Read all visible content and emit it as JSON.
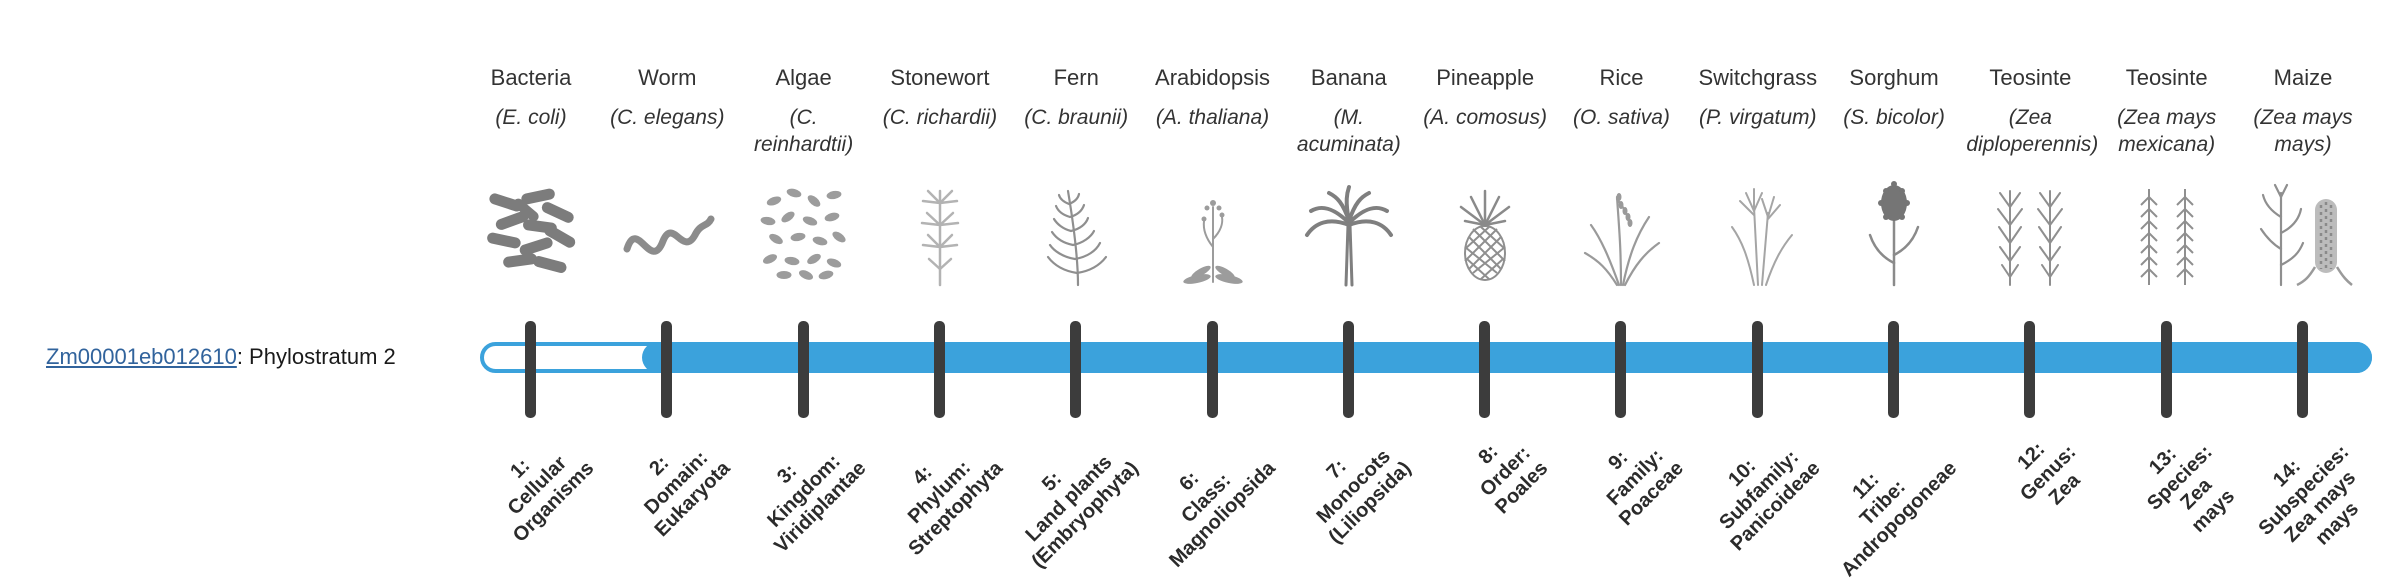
{
  "gene_track": {
    "gene_id": "Zm00001eb012610",
    "suffix": ": Phylostratum 2",
    "phylostratum": 2
  },
  "colors": {
    "track_fill": "#3ba2dc",
    "track_border": "#3ba2dc",
    "tick": "#3c3c3c",
    "link": "#31639c"
  },
  "organisms": [
    {
      "name": "Bacteria",
      "sci_name": "(E. coli)",
      "icon": "bacteria-icon",
      "tick_label": "1:\nCellular\nOrganisms"
    },
    {
      "name": "Worm",
      "sci_name": "(C. elegans)",
      "icon": "worm-icon",
      "tick_label": "2:\nDomain:\nEukaryota"
    },
    {
      "name": "Algae",
      "sci_name": "(C. reinhardtii)",
      "icon": "algae-icon",
      "tick_label": "3:\nKingdom:\nViridiplantae"
    },
    {
      "name": "Stonewort",
      "sci_name": "(C. richardii)",
      "icon": "stonewort-icon",
      "tick_label": "4:\nPhylum:\nStreptophyta"
    },
    {
      "name": "Fern",
      "sci_name": "(C. braunii)",
      "icon": "fern-icon",
      "tick_label": "5:\nLand plants\n(Embryophyta)"
    },
    {
      "name": "Arabidopsis",
      "sci_name": "(A. thaliana)",
      "icon": "arabidopsis-icon",
      "tick_label": "6:\nClass:\nMagnoliopsida"
    },
    {
      "name": "Banana",
      "sci_name": "(M. acuminata)",
      "icon": "banana-icon",
      "tick_label": "7:\nMonocots\n(Liliopsida)"
    },
    {
      "name": "Pineapple",
      "sci_name": "(A. comosus)",
      "icon": "pineapple-icon",
      "tick_label": "8:\nOrder:\nPoales"
    },
    {
      "name": "Rice",
      "sci_name": "(O. sativa)",
      "icon": "rice-icon",
      "tick_label": "9:\nFamily:\nPoaceae"
    },
    {
      "name": "Switchgrass",
      "sci_name": "(P. virgatum)",
      "icon": "switchgrass-icon",
      "tick_label": "10:\nSubfamily:\nPanicoideae"
    },
    {
      "name": "Sorghum",
      "sci_name": "(S. bicolor)",
      "icon": "sorghum-icon",
      "tick_label": "11:\nTribe:\nAndropogoneae"
    },
    {
      "name": "Teosinte",
      "sci_name": "(Zea diploperennis)",
      "icon": "teosinte-icon",
      "tick_label": "12:\nGenus:\nZea"
    },
    {
      "name": "Teosinte",
      "sci_name": "(Zea mays mexicana)",
      "icon": "teosinte2-icon",
      "tick_label": "13:\nSpecies:\nZea\nmays"
    },
    {
      "name": "Maize",
      "sci_name": "(Zea mays mays)",
      "icon": "maize-icon",
      "tick_label": "14:\nSubspecies:\nZea mays\nmays"
    }
  ]
}
